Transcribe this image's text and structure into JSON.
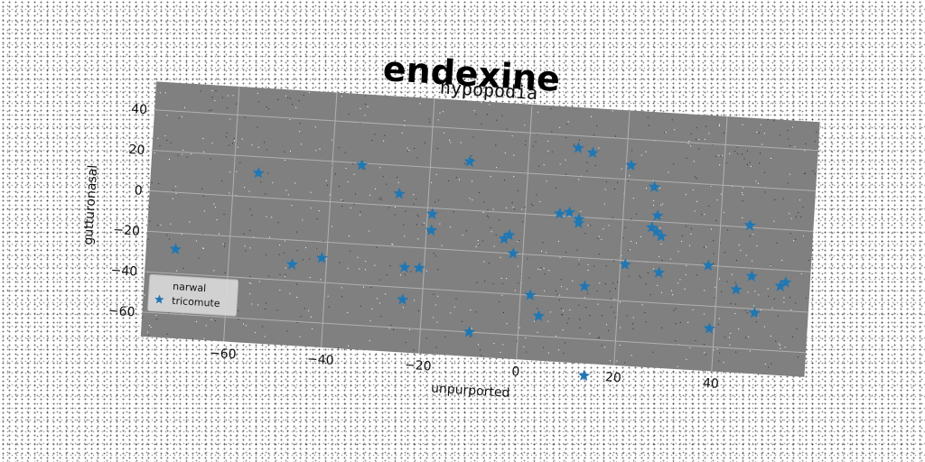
{
  "colors": {
    "plot_background": "#808080",
    "grid": "#b0b0b0",
    "series_color": "#1f77b4",
    "legend_background": "#d8d8d8"
  },
  "chart_data": {
    "type": "scatter",
    "title": "endexine",
    "subtitle": "hypopodia",
    "xlabel": "unpurported",
    "ylabel": "gutturonasal",
    "xlim": [
      -77,
      59
    ],
    "ylim": [
      -72,
      54
    ],
    "xticks": [
      -60,
      -40,
      -20,
      0,
      20,
      40
    ],
    "yticks": [
      40,
      20,
      0,
      -20,
      -40,
      -60
    ],
    "grid": true,
    "legend_position": "lower-left",
    "rotation_deg": 3.5,
    "legend": [
      {
        "label": "narwal",
        "marker": "none"
      },
      {
        "label": "tricomute",
        "marker": "star"
      }
    ],
    "series": [
      {
        "name": "tricomute",
        "marker": "star",
        "points": [
          {
            "x": -71,
            "y": -28
          },
          {
            "x": -55,
            "y": 12
          },
          {
            "x": -47,
            "y": -32
          },
          {
            "x": -41,
            "y": -28
          },
          {
            "x": -34,
            "y": 19
          },
          {
            "x": -26,
            "y": 6
          },
          {
            "x": -24,
            "y": -30
          },
          {
            "x": -24,
            "y": -46
          },
          {
            "x": -21,
            "y": -30
          },
          {
            "x": -19,
            "y": -3
          },
          {
            "x": -19,
            "y": -11
          },
          {
            "x": -12,
            "y": 24
          },
          {
            "x": -10,
            "y": -60
          },
          {
            "x": -4,
            "y": -13
          },
          {
            "x": -3,
            "y": -11
          },
          {
            "x": -2,
            "y": -20
          },
          {
            "x": 2,
            "y": -40
          },
          {
            "x": 4,
            "y": -50
          },
          {
            "x": 7,
            "y": 1
          },
          {
            "x": 9,
            "y": 2
          },
          {
            "x": 10,
            "y": 34
          },
          {
            "x": 11,
            "y": -1
          },
          {
            "x": 11,
            "y": -3
          },
          {
            "x": 13,
            "y": 32
          },
          {
            "x": 13,
            "y": -34
          },
          {
            "x": 14,
            "y": -78
          },
          {
            "x": 21,
            "y": 27
          },
          {
            "x": 21,
            "y": -22
          },
          {
            "x": 26,
            "y": 17
          },
          {
            "x": 26,
            "y": -3
          },
          {
            "x": 27,
            "y": 3
          },
          {
            "x": 27,
            "y": -5
          },
          {
            "x": 28,
            "y": -25
          },
          {
            "x": 28,
            "y": -7
          },
          {
            "x": 38,
            "y": -20
          },
          {
            "x": 39,
            "y": -51
          },
          {
            "x": 44,
            "y": -31
          },
          {
            "x": 46,
            "y": 1
          },
          {
            "x": 47,
            "y": -24
          },
          {
            "x": 48,
            "y": -42
          },
          {
            "x": 53,
            "y": -28
          },
          {
            "x": 54,
            "y": -26
          }
        ]
      }
    ]
  }
}
